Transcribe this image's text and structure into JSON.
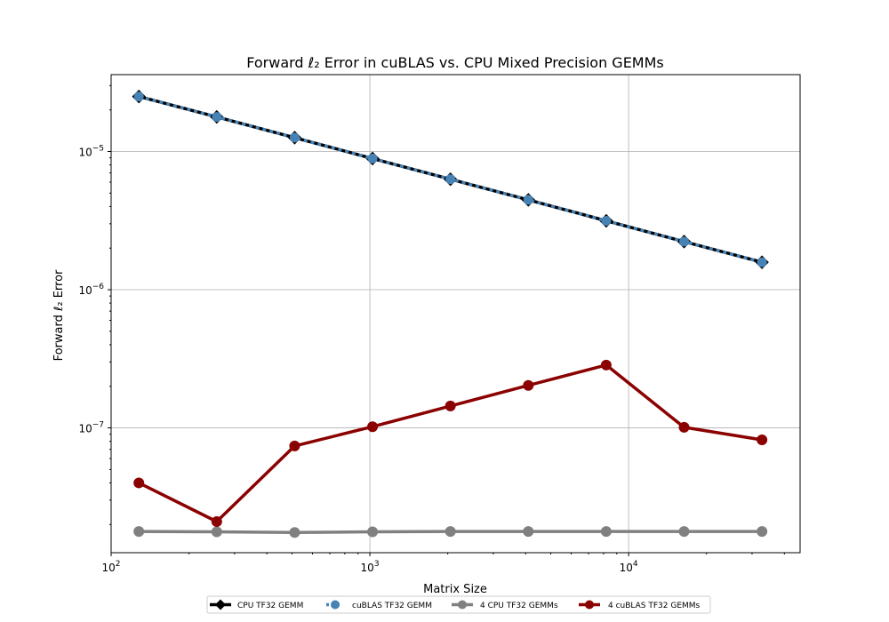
{
  "chart_data": {
    "type": "line",
    "title": "Forward ℓ₂ Error in cuBLAS vs. CPU Mixed Precision GEMMs",
    "xlabel": "Matrix Size",
    "ylabel": "Forward ℓ₂ Error",
    "xscale": "log",
    "yscale": "log",
    "xlim": [
      100,
      46000
    ],
    "ylim": [
      1.25e-08,
      3.6e-05
    ],
    "grid": true,
    "legend_position": "bottom-center",
    "x": [
      128,
      256,
      512,
      1024,
      2048,
      4096,
      8192,
      16384,
      32768
    ],
    "x_ticks": [
      {
        "value": 100,
        "base": "10",
        "exp": "2"
      },
      {
        "value": 1000,
        "base": "10",
        "exp": "3"
      },
      {
        "value": 10000,
        "base": "10",
        "exp": "4"
      }
    ],
    "y_ticks": [
      {
        "value": 1e-07,
        "base": "10",
        "exp": "−7"
      },
      {
        "value": 1e-06,
        "base": "10",
        "exp": "−6"
      },
      {
        "value": 1e-05,
        "base": "10",
        "exp": "−5"
      }
    ],
    "series": [
      {
        "name": "CPU TF32 GEMM",
        "color": "#000000",
        "marker": "diamond",
        "values": [
          2.5e-05,
          1.78e-05,
          1.26e-05,
          8.9e-06,
          6.3e-06,
          4.47e-06,
          3.15e-06,
          2.23e-06,
          1.58e-06
        ]
      },
      {
        "name": "cuBLAS TF32 GEMM",
        "color": "#4682b4",
        "marker": "circle",
        "dashed": true,
        "values": [
          2.5e-05,
          1.78e-05,
          1.26e-05,
          8.9e-06,
          6.3e-06,
          4.47e-06,
          3.15e-06,
          2.23e-06,
          1.58e-06
        ]
      },
      {
        "name": "4 CPU TF32 GEMMs",
        "color": "#808080",
        "marker": "circle",
        "values": [
          1.78e-08,
          1.77e-08,
          1.75e-08,
          1.77e-08,
          1.78e-08,
          1.78e-08,
          1.78e-08,
          1.78e-08,
          1.78e-08
        ]
      },
      {
        "name": "4 cuBLAS TF32 GEMMs",
        "color": "#8b0000",
        "marker": "circle",
        "values": [
          4e-08,
          2.1e-08,
          7.4e-08,
          1.02e-07,
          1.44e-07,
          2.03e-07,
          2.85e-07,
          1.01e-07,
          8.2e-08
        ]
      }
    ]
  }
}
